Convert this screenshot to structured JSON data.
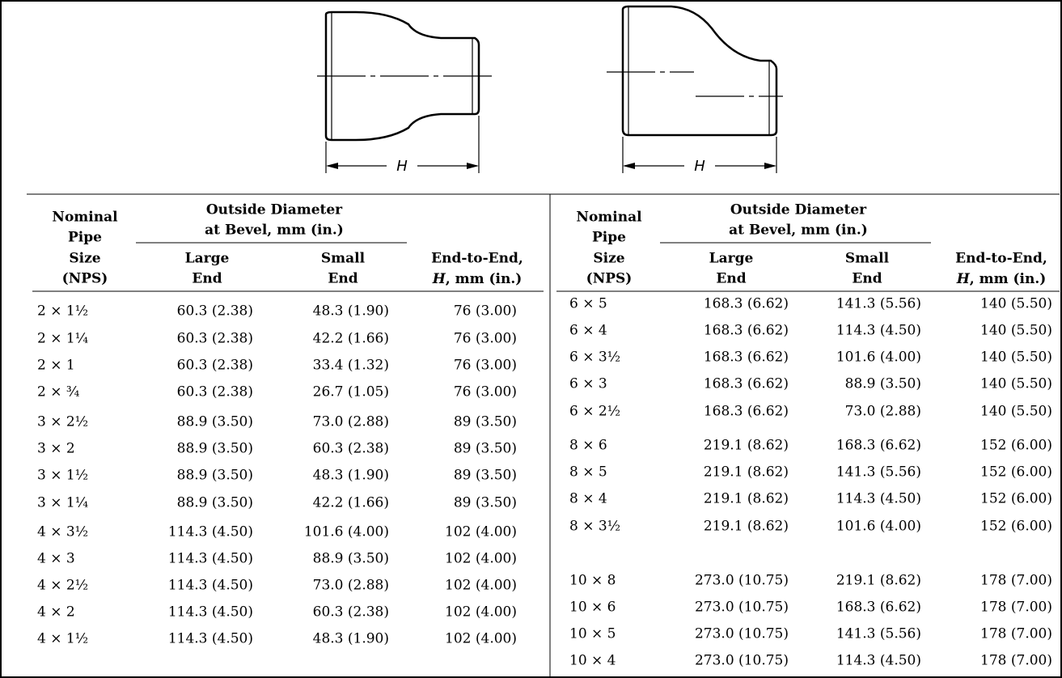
{
  "diagrams": [
    {
      "dimension": "H"
    },
    {
      "dimension": "H"
    }
  ],
  "tables": [
    {
      "header": {
        "nominal": [
          "Nominal",
          "Pipe",
          "Size",
          "(NPS)"
        ],
        "outside_diameter": [
          "Outside Diameter",
          "at Bevel, mm (in.)"
        ],
        "large_end": [
          "Large",
          "End"
        ],
        "small_end": [
          "Small",
          "End"
        ],
        "end_to_end": [
          "End-to-End,",
          "H",
          ", mm (in.)"
        ]
      },
      "rows": [
        [
          "2 × 1½",
          "60.3 (2.38)",
          "48.3 (1.90)",
          "76 (3.00)"
        ],
        [
          "2 × 1¼",
          "60.3 (2.38)",
          "42.2 (1.66)",
          "76 (3.00)"
        ],
        [
          "2 × 1",
          "60.3 (2.38)",
          "33.4 (1.32)",
          "76 (3.00)"
        ],
        [
          "2 × ¾",
          "60.3 (2.38)",
          "26.7 (1.05)",
          "76 (3.00)"
        ],
        [
          "3 × 2½",
          "88.9 (3.50)",
          "73.0 (2.88)",
          "89 (3.50)"
        ],
        [
          "3 × 2",
          "88.9 (3.50)",
          "60.3 (2.38)",
          "89 (3.50)"
        ],
        [
          "3 × 1½",
          "88.9 (3.50)",
          "48.3 (1.90)",
          "89 (3.50)"
        ],
        [
          "3 × 1¼",
          "88.9 (3.50)",
          "42.2 (1.66)",
          "89 (3.50)"
        ],
        [
          "4 × 3½",
          "114.3 (4.50)",
          "101.6 (4.00)",
          "102 (4.00)"
        ],
        [
          "4 × 3",
          "114.3 (4.50)",
          "88.9 (3.50)",
          "102 (4.00)"
        ],
        [
          "4 × 2½",
          "114.3 (4.50)",
          "73.0 (2.88)",
          "102 (4.00)"
        ],
        [
          "4 × 2",
          "114.3 (4.50)",
          "60.3 (2.38)",
          "102 (4.00)"
        ],
        [
          "4 × 1½",
          "114.3 (4.50)",
          "48.3 (1.90)",
          "102 (4.00)"
        ]
      ]
    },
    {
      "header": {
        "nominal": [
          "Nominal",
          "Pipe",
          "Size",
          "(NPS)"
        ],
        "outside_diameter": [
          "Outside Diameter",
          "at Bevel, mm (in.)"
        ],
        "large_end": [
          "Large",
          "End"
        ],
        "small_end": [
          "Small",
          "End"
        ],
        "end_to_end": [
          "End-to-End,",
          "H",
          ", mm (in.)"
        ]
      },
      "rows": [
        [
          "6 × 5",
          "168.3 (6.62)",
          "141.3 (5.56)",
          "140 (5.50)"
        ],
        [
          "6 × 4",
          "168.3 (6.62)",
          "114.3 (4.50)",
          "140 (5.50)"
        ],
        [
          "6 × 3½",
          "168.3 (6.62)",
          "101.6 (4.00)",
          "140 (5.50)"
        ],
        [
          "6 × 3",
          "168.3 (6.62)",
          "88.9 (3.50)",
          "140 (5.50)"
        ],
        [
          "6 × 2½",
          "168.3 (6.62)",
          "73.0 (2.88)",
          "140 (5.50)"
        ],
        [
          "8 × 6",
          "219.1 (8.62)",
          "168.3 (6.62)",
          "152 (6.00)"
        ],
        [
          "8 × 5",
          "219.1 (8.62)",
          "141.3 (5.56)",
          "152 (6.00)"
        ],
        [
          "8 × 4",
          "219.1 (8.62)",
          "114.3 (4.50)",
          "152 (6.00)"
        ],
        [
          "8 × 3½",
          "219.1 (8.62)",
          "101.6 (4.00)",
          "152 (6.00)"
        ],
        [
          "10 × 8",
          "273.0 (10.75)",
          "219.1 (8.62)",
          "178 (7.00)"
        ],
        [
          "10 × 6",
          "273.0 (10.75)",
          "168.3 (6.62)",
          "178 (7.00)"
        ],
        [
          "10 × 5",
          "273.0 (10.75)",
          "141.3 (5.56)",
          "178 (7.00)"
        ],
        [
          "10 × 4",
          "273.0 (10.75)",
          "114.3 (4.50)",
          "178 (7.00)"
        ]
      ]
    }
  ]
}
